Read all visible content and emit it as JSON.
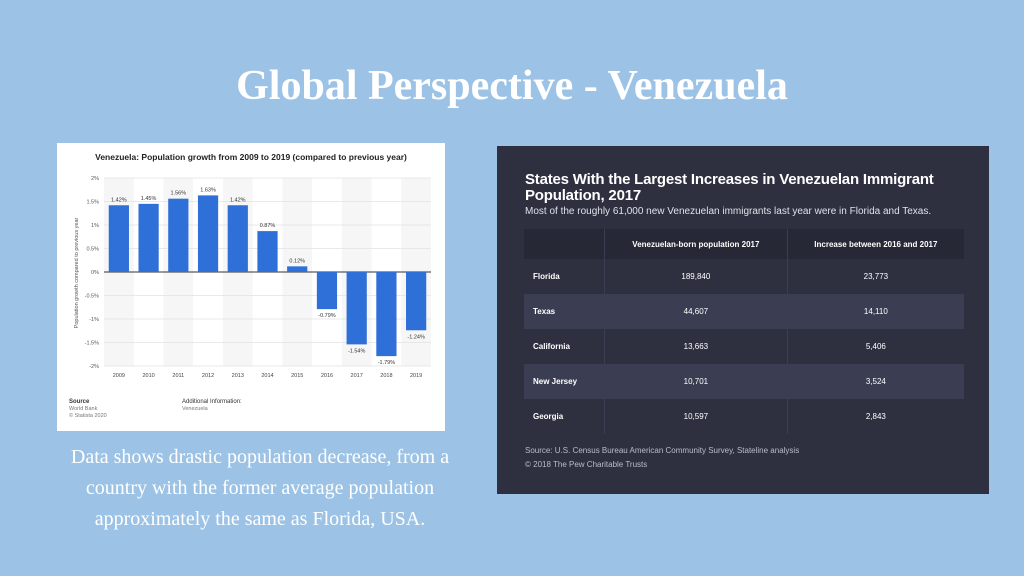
{
  "slide": {
    "title": "Global Perspective - Venezuela",
    "caption": "Data shows drastic population decrease, from a country with the former average population approximately the same as Florida, USA."
  },
  "chart_data": {
    "type": "bar",
    "title": "Venezuela: Population growth from 2009 to 2019 (compared to previous year)",
    "ylabel": "Population growth compared to previous year",
    "xlabel": "",
    "categories": [
      "2009",
      "2010",
      "2011",
      "2012",
      "2013",
      "2014",
      "2015",
      "2016",
      "2017",
      "2018",
      "2019"
    ],
    "values": [
      1.42,
      1.45,
      1.56,
      1.63,
      1.42,
      0.87,
      0.12,
      -0.79,
      -1.54,
      -1.79,
      -1.24
    ],
    "value_labels": [
      "1.42%",
      "1.45%",
      "1.56%",
      "1.63%",
      "1.42%",
      "0.87%",
      "0.12%",
      "-0.79%",
      "-1.54%",
      "-1.79%",
      "-1.24%"
    ],
    "ylim": [
      -2,
      2
    ],
    "yticks": [
      2,
      1.5,
      1,
      0.5,
      0,
      -0.5,
      -1,
      -1.5,
      -2
    ],
    "ytick_labels": [
      "2%",
      "1.5%",
      "1%",
      "0.5%",
      "0%",
      "-0.5%",
      "-1%",
      "-1.5%",
      "-2%"
    ],
    "bar_color": "#2f6fd8",
    "grid": true,
    "source_label": "Source",
    "source_lines": [
      "World Bank",
      "© Statista 2020"
    ],
    "info_label": "Additional Information:",
    "info_lines": [
      "Venezuela"
    ]
  },
  "table": {
    "title": "States With the Largest Increases in Venezuelan Immigrant Population, 2017",
    "subtitle": "Most of the roughly 61,000 new Venezuelan immigrants last year were in Florida and Texas.",
    "headers": [
      "",
      "Venezuelan-born population 2017",
      "Increase between 2016 and 2017"
    ],
    "rows": [
      {
        "state": "Florida",
        "population": "189,840",
        "increase": "23,773"
      },
      {
        "state": "Texas",
        "population": "44,607",
        "increase": "14,110"
      },
      {
        "state": "California",
        "population": "13,663",
        "increase": "5,406"
      },
      {
        "state": "New Jersey",
        "population": "10,701",
        "increase": "3,524"
      },
      {
        "state": "Georgia",
        "population": "10,597",
        "increase": "2,843"
      }
    ],
    "source": "Source: U.S. Census Bureau American Community Survey, Stateline analysis",
    "copyright": "© 2018 The Pew Charitable Trusts"
  }
}
